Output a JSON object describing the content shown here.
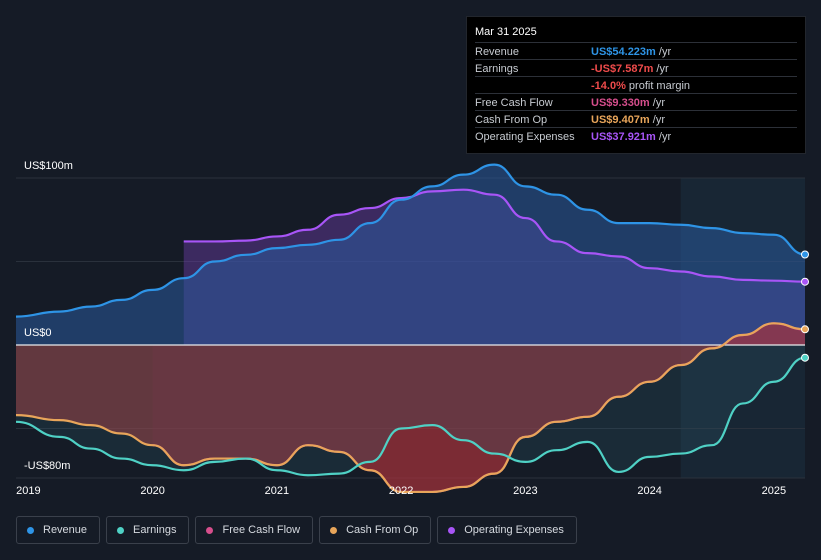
{
  "tooltip": {
    "date": "Mar 31 2025",
    "rows": [
      {
        "label": "Revenue",
        "value": "US$54.223m",
        "unit": " /yr",
        "color": "#2e94e6"
      },
      {
        "label": "Earnings",
        "value": "-US$7.587m",
        "unit": " /yr",
        "color": "#ef4b4b"
      },
      {
        "label": "",
        "value": "-14.0%",
        "unit": " profit margin",
        "color": "#ef4b4b"
      },
      {
        "label": "Free Cash Flow",
        "value": "US$9.330m",
        "unit": " /yr",
        "color": "#d64e8c"
      },
      {
        "label": "Cash From Op",
        "value": "US$9.407m",
        "unit": " /yr",
        "color": "#e8a55a"
      },
      {
        "label": "Operating Expenses",
        "value": "US$37.921m",
        "unit": " /yr",
        "color": "#a855f7"
      }
    ]
  },
  "chart_data": {
    "type": "area",
    "title": "",
    "xlabel": "",
    "ylabel": "",
    "y_top_label": "US$100m",
    "y_zero_label": "US$0",
    "y_bottom_label": "-US$80m",
    "ylim": [
      -80,
      100
    ],
    "xlim": [
      2018.9,
      2025.25
    ],
    "x_ticks": [
      2019,
      2020,
      2021,
      2022,
      2023,
      2024,
      2025
    ],
    "x_tick_labels": [
      "2019",
      "2020",
      "2021",
      "2022",
      "2023",
      "2024",
      "2025"
    ],
    "forecast_start": 2024.25,
    "series": [
      {
        "name": "Operating Expenses",
        "color": "#a855f7",
        "x": [
          2020.25,
          2020.5,
          2020.75,
          2021.0,
          2021.25,
          2021.5,
          2021.75,
          2022.0,
          2022.25,
          2022.5,
          2022.75,
          2023.0,
          2023.25,
          2023.5,
          2023.75,
          2024.0,
          2024.25,
          2024.5,
          2024.75,
          2025.0,
          2025.25
        ],
        "values": [
          62,
          62,
          62.5,
          65,
          69,
          78,
          82,
          88,
          92,
          93,
          90,
          76,
          62,
          55,
          53,
          46,
          44,
          41,
          39,
          38.5,
          37.9
        ]
      },
      {
        "name": "Revenue",
        "color": "#2e94e6",
        "x": [
          2018.9,
          2019.25,
          2019.5,
          2019.75,
          2020.0,
          2020.25,
          2020.5,
          2020.75,
          2021.0,
          2021.25,
          2021.5,
          2021.75,
          2022.0,
          2022.25,
          2022.5,
          2022.75,
          2023.0,
          2023.25,
          2023.5,
          2023.75,
          2024.0,
          2024.25,
          2024.5,
          2024.75,
          2025.0,
          2025.25
        ],
        "values": [
          17,
          20,
          23,
          27,
          33,
          40,
          50,
          54,
          58,
          60,
          63,
          73,
          87,
          95,
          102,
          108,
          95,
          90,
          81,
          73,
          73,
          72,
          70,
          67,
          66,
          54.2
        ]
      },
      {
        "name": "Cash From Op",
        "color": "#e8a55a",
        "x": [
          2018.9,
          2019.25,
          2019.5,
          2019.75,
          2020.0,
          2020.25,
          2020.5,
          2020.75,
          2021.0,
          2021.25,
          2021.5,
          2021.75,
          2022.0,
          2022.25,
          2022.5,
          2022.75,
          2023.0,
          2023.25,
          2023.5,
          2023.75,
          2024.0,
          2024.25,
          2024.5,
          2024.75,
          2025.0,
          2025.25
        ],
        "values": [
          -42,
          -45,
          -48,
          -53,
          -60,
          -72,
          -68,
          -68,
          -72,
          -60,
          -64,
          -75,
          -88,
          -88,
          -85,
          -77,
          -55,
          -46,
          -43,
          -31,
          -22,
          -12,
          -2,
          6,
          13,
          9.4
        ]
      },
      {
        "name": "Free Cash Flow",
        "color": "#d64e8c",
        "x": [
          2020.0,
          2020.25,
          2020.5,
          2020.75,
          2021.0,
          2021.25,
          2021.5,
          2021.75,
          2022.0,
          2022.25,
          2022.5,
          2022.75,
          2023.0,
          2023.25,
          2023.5,
          2023.75,
          2024.0,
          2024.25,
          2024.5,
          2024.75,
          2025.0,
          2025.25
        ],
        "values": [
          -60,
          -72,
          -68,
          -68,
          -72,
          -60,
          -64,
          -75,
          -88,
          -88,
          -85,
          -77,
          -55,
          -46,
          -43,
          -31,
          -22,
          -12,
          -2,
          6,
          13,
          9.3
        ]
      },
      {
        "name": "Earnings",
        "color": "#4fd1c5",
        "x": [
          2018.9,
          2019.25,
          2019.5,
          2019.75,
          2020.0,
          2020.25,
          2020.5,
          2020.75,
          2021.0,
          2021.25,
          2021.5,
          2021.75,
          2022.0,
          2022.25,
          2022.5,
          2022.75,
          2023.0,
          2023.25,
          2023.5,
          2023.75,
          2024.0,
          2024.25,
          2024.5,
          2024.75,
          2025.0,
          2025.25
        ],
        "values": [
          -46,
          -55,
          -62,
          -68,
          -72,
          -75,
          -70,
          -68,
          -75,
          -78,
          -77,
          -70,
          -50,
          -48,
          -57,
          -65,
          -70,
          -63,
          -58,
          -76,
          -67,
          -65,
          -60,
          -35,
          -22,
          -7.6
        ]
      }
    ]
  },
  "legend": [
    {
      "label": "Revenue",
      "color": "#2e94e6"
    },
    {
      "label": "Earnings",
      "color": "#4fd1c5"
    },
    {
      "label": "Free Cash Flow",
      "color": "#d64e8c"
    },
    {
      "label": "Cash From Op",
      "color": "#e8a55a"
    },
    {
      "label": "Operating Expenses",
      "color": "#a855f7"
    }
  ]
}
